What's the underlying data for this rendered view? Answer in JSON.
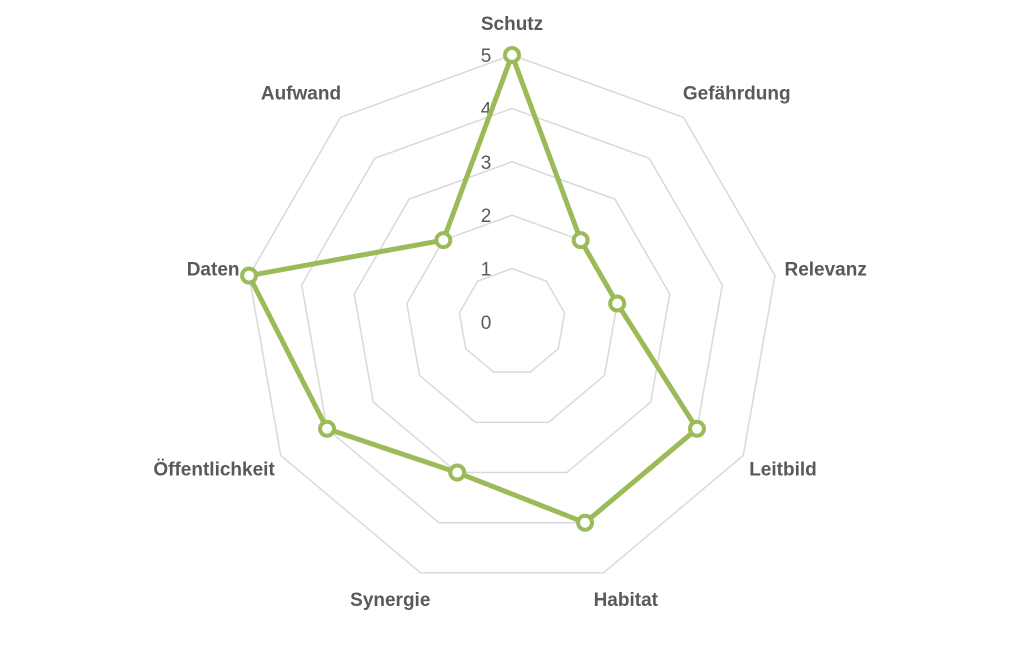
{
  "chart_data": {
    "type": "radar",
    "categories": [
      "Schutz",
      "Gefährdung",
      "Relevanz",
      "Leitbild",
      "Habitat",
      "Synergie",
      "Öffentlichkeit",
      "Daten",
      "Aufwand"
    ],
    "series": [
      {
        "color": "#9bbb59",
        "values": [
          5,
          2,
          2,
          4,
          4,
          3,
          4,
          5,
          2
        ]
      }
    ],
    "ylim": [
      0,
      5
    ],
    "yticks": [
      0,
      1,
      2,
      3,
      4,
      5
    ],
    "grid": true
  }
}
